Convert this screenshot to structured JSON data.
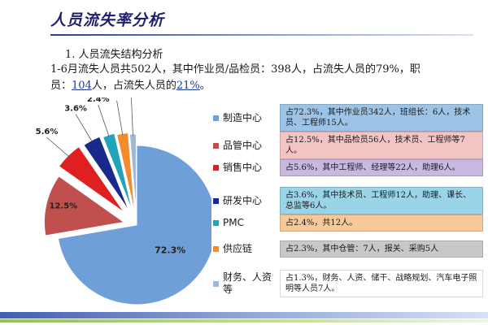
{
  "header": {
    "title": "人员流失率分析"
  },
  "section_heading": "1. 人员流失结构分析",
  "summary": {
    "line1": "1-6月流失人员共502人，其中作业员/品检员：398人，占流失人员的79%，职",
    "line2_a": "员：",
    "line2_num": "104",
    "line2_b": "人，占流失人员的",
    "line2_pct": "21%",
    "line2_c": "。"
  },
  "chart_data": {
    "type": "pie",
    "title": "",
    "slices": [
      {
        "label": "制造中心",
        "value": 72.3,
        "value_label": "72.3%",
        "color": "#6f9fd8",
        "desc": "占72.3%，其中作业员342人，班组长：6人，技术员、工程师15人。",
        "desc_bg": "#9dc3e6"
      },
      {
        "label": "品管中心",
        "value": 12.5,
        "value_label": "12.5%",
        "color": "#c0504d",
        "desc": "占12.5%，其中品检员56人，技术员、工程师等7人。",
        "desc_bg": "#f2c4c4"
      },
      {
        "label": "销售中心",
        "value": 5.6,
        "value_label": "5.6%",
        "color": "#e02020",
        "desc": "占5.6%，其中工程师、经理等22人，助理6人。",
        "desc_bg": "#c9b8e0"
      },
      {
        "label": "研发中心",
        "value": 3.6,
        "value_label": "3.6%",
        "color": "#1a2a8c",
        "desc": "占3.6%，其中技术员、工程师12人，助理、课长、总监等6人。",
        "desc_bg": "#99d4e8"
      },
      {
        "label": "PMC",
        "value": 2.4,
        "value_label": "2.4%",
        "color": "#22a3b8",
        "desc": "占2.4%，共12人。",
        "desc_bg": "#f6c89a"
      },
      {
        "label": "供应链",
        "value": 2.3,
        "value_label": "2.3%",
        "color": "#f28a2e",
        "desc": "占2.3%，其中仓管：7人，报关、采购5人",
        "desc_bg": "#c8c8c8"
      },
      {
        "label": "财务、人资等",
        "value": 1.3,
        "value_label": "1.3%",
        "color": "#9fb8d6",
        "desc": "占1.3%，财务、人资、储干、战略规划、汽车电子照明等人员7人。",
        "desc_bg": "#ffffff"
      }
    ]
  }
}
